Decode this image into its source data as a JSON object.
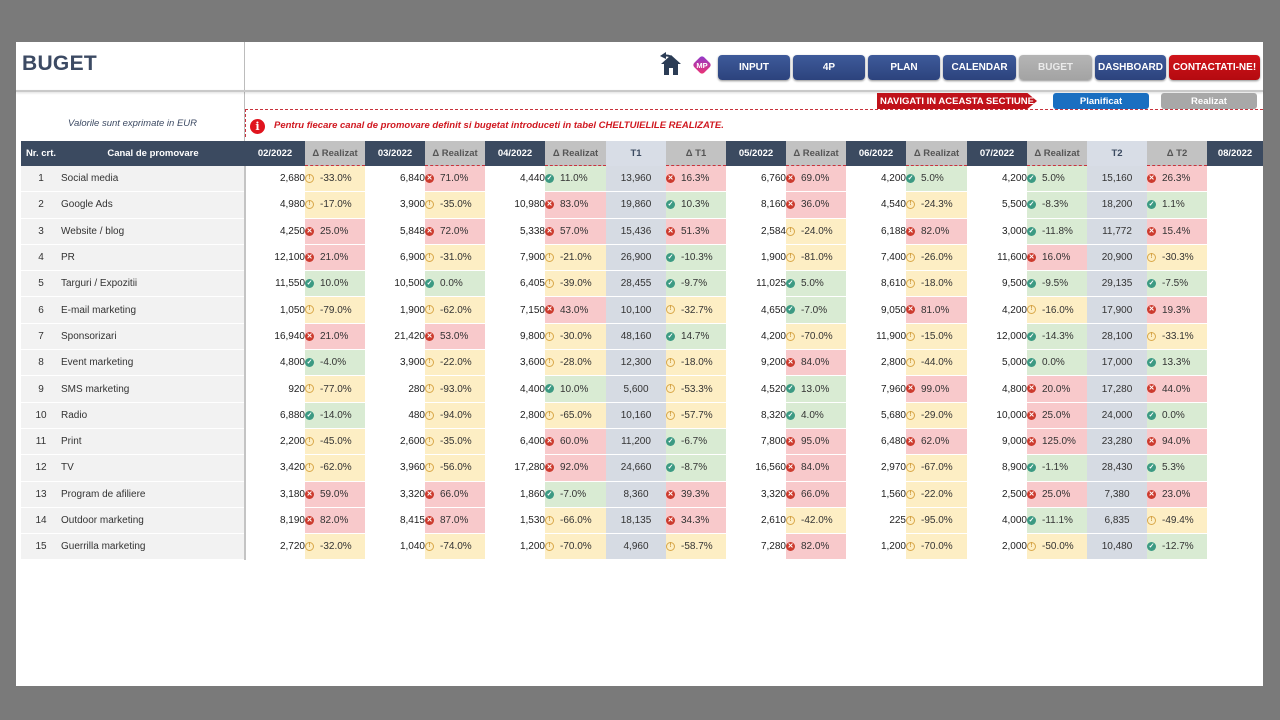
{
  "header": {
    "title": "BUGET",
    "icons": {
      "home": "home-back-icon",
      "logo": "mp-logo-icon"
    },
    "nav": [
      {
        "label": "INPUT",
        "active": false
      },
      {
        "label": "4P",
        "active": false
      },
      {
        "label": "PLAN",
        "active": false
      },
      {
        "label": "CALENDAR",
        "active": false
      },
      {
        "label": "BUGET",
        "active": true
      },
      {
        "label": "DASHBOARD",
        "active": false
      },
      {
        "label": "CONTACTATI-NE!",
        "active": false
      }
    ],
    "section_label": "NAVIGATI IN ACEASTA SECTIUNE",
    "section_buttons": {
      "planned": "Planificat",
      "actual": "Realizat"
    }
  },
  "notes": {
    "units": "Valorile sunt exprimate in EUR",
    "info": "Pentru fiecare canal de promovare definit si bugetat introduceti in tabel CHELTUIELILE REALIZATE.",
    "info_icon": "i"
  },
  "colors": {
    "header_dark": "#3b4a60",
    "nav_blue": "#2c437d",
    "contact_red": "#c0121a",
    "status_ok": "#d9ebd3",
    "status_warn": "#fdeec4",
    "status_bad": "#f8c9cb"
  },
  "table": {
    "columns": {
      "nr": "Nr. crt.",
      "canal": "Canal de promovare",
      "m1": "02/2022",
      "d1": "Δ Realizat",
      "m2": "03/2022",
      "d2": "Δ Realizat",
      "m3": "04/2022",
      "d3": "Δ Realizat",
      "q1": "T1",
      "dq1": "Δ  T1",
      "m4": "05/2022",
      "d4": "Δ Realizat",
      "m5": "06/2022",
      "d5": "Δ Realizat",
      "m6": "07/2022",
      "d6": "Δ Realizat",
      "q2": "T2",
      "dq2": "Δ  T2",
      "m7": "08/2022"
    },
    "rows": [
      {
        "nr": "1",
        "canal": "Social media",
        "m1": "2,680",
        "d1": "-33.0%",
        "m2": "6,840",
        "d2": "71.0%",
        "m3": "4,440",
        "d3": "11.0%",
        "q1": "13,960",
        "dq1": "16.3%",
        "m4": "6,760",
        "d4": "69.0%",
        "m5": "4,200",
        "d5": "5.0%",
        "m6": "4,200",
        "d6": "5.0%",
        "q2": "15,160",
        "dq2": "26.3%"
      },
      {
        "nr": "2",
        "canal": "Google Ads",
        "m1": "4,980",
        "d1": "-17.0%",
        "m2": "3,900",
        "d2": "-35.0%",
        "m3": "10,980",
        "d3": "83.0%",
        "q1": "19,860",
        "dq1": "10.3%",
        "m4": "8,160",
        "d4": "36.0%",
        "m5": "4,540",
        "d5": "-24.3%",
        "m6": "5,500",
        "d6": "-8.3%",
        "q2": "18,200",
        "dq2": "1.1%"
      },
      {
        "nr": "3",
        "canal": "Website / blog",
        "m1": "4,250",
        "d1": "25.0%",
        "m2": "5,848",
        "d2": "72.0%",
        "m3": "5,338",
        "d3": "57.0%",
        "q1": "15,436",
        "dq1": "51.3%",
        "m4": "2,584",
        "d4": "-24.0%",
        "m5": "6,188",
        "d5": "82.0%",
        "m6": "3,000",
        "d6": "-11.8%",
        "q2": "11,772",
        "dq2": "15.4%"
      },
      {
        "nr": "4",
        "canal": "PR",
        "m1": "12,100",
        "d1": "21.0%",
        "m2": "6,900",
        "d2": "-31.0%",
        "m3": "7,900",
        "d3": "-21.0%",
        "q1": "26,900",
        "dq1": "-10.3%",
        "m4": "1,900",
        "d4": "-81.0%",
        "m5": "7,400",
        "d5": "-26.0%",
        "m6": "11,600",
        "d6": "16.0%",
        "q2": "20,900",
        "dq2": "-30.3%"
      },
      {
        "nr": "5",
        "canal": "Targuri / Expozitii",
        "m1": "11,550",
        "d1": "10.0%",
        "m2": "10,500",
        "d2": "0.0%",
        "m3": "6,405",
        "d3": "-39.0%",
        "q1": "28,455",
        "dq1": "-9.7%",
        "m4": "11,025",
        "d4": "5.0%",
        "m5": "8,610",
        "d5": "-18.0%",
        "m6": "9,500",
        "d6": "-9.5%",
        "q2": "29,135",
        "dq2": "-7.5%"
      },
      {
        "nr": "6",
        "canal": "E-mail marketing",
        "m1": "1,050",
        "d1": "-79.0%",
        "m2": "1,900",
        "d2": "-62.0%",
        "m3": "7,150",
        "d3": "43.0%",
        "q1": "10,100",
        "dq1": "-32.7%",
        "m4": "4,650",
        "d4": "-7.0%",
        "m5": "9,050",
        "d5": "81.0%",
        "m6": "4,200",
        "d6": "-16.0%",
        "q2": "17,900",
        "dq2": "19.3%"
      },
      {
        "nr": "7",
        "canal": "Sponsorizari",
        "m1": "16,940",
        "d1": "21.0%",
        "m2": "21,420",
        "d2": "53.0%",
        "m3": "9,800",
        "d3": "-30.0%",
        "q1": "48,160",
        "dq1": "14.7%",
        "m4": "4,200",
        "d4": "-70.0%",
        "m5": "11,900",
        "d5": "-15.0%",
        "m6": "12,000",
        "d6": "-14.3%",
        "q2": "28,100",
        "dq2": "-33.1%"
      },
      {
        "nr": "8",
        "canal": "Event marketing",
        "m1": "4,800",
        "d1": "-4.0%",
        "m2": "3,900",
        "d2": "-22.0%",
        "m3": "3,600",
        "d3": "-28.0%",
        "q1": "12,300",
        "dq1": "-18.0%",
        "m4": "9,200",
        "d4": "84.0%",
        "m5": "2,800",
        "d5": "-44.0%",
        "m6": "5,000",
        "d6": "0.0%",
        "q2": "17,000",
        "dq2": "13.3%"
      },
      {
        "nr": "9",
        "canal": "SMS marketing",
        "m1": "920",
        "d1": "-77.0%",
        "m2": "280",
        "d2": "-93.0%",
        "m3": "4,400",
        "d3": "10.0%",
        "q1": "5,600",
        "dq1": "-53.3%",
        "m4": "4,520",
        "d4": "13.0%",
        "m5": "7,960",
        "d5": "99.0%",
        "m6": "4,800",
        "d6": "20.0%",
        "q2": "17,280",
        "dq2": "44.0%"
      },
      {
        "nr": "10",
        "canal": "Radio",
        "m1": "6,880",
        "d1": "-14.0%",
        "m2": "480",
        "d2": "-94.0%",
        "m3": "2,800",
        "d3": "-65.0%",
        "q1": "10,160",
        "dq1": "-57.7%",
        "m4": "8,320",
        "d4": "4.0%",
        "m5": "5,680",
        "d5": "-29.0%",
        "m6": "10,000",
        "d6": "25.0%",
        "q2": "24,000",
        "dq2": "0.0%"
      },
      {
        "nr": "11",
        "canal": "Print",
        "m1": "2,200",
        "d1": "-45.0%",
        "m2": "2,600",
        "d2": "-35.0%",
        "m3": "6,400",
        "d3": "60.0%",
        "q1": "11,200",
        "dq1": "-6.7%",
        "m4": "7,800",
        "d4": "95.0%",
        "m5": "6,480",
        "d5": "62.0%",
        "m6": "9,000",
        "d6": "125.0%",
        "q2": "23,280",
        "dq2": "94.0%"
      },
      {
        "nr": "12",
        "canal": "TV",
        "m1": "3,420",
        "d1": "-62.0%",
        "m2": "3,960",
        "d2": "-56.0%",
        "m3": "17,280",
        "d3": "92.0%",
        "q1": "24,660",
        "dq1": "-8.7%",
        "m4": "16,560",
        "d4": "84.0%",
        "m5": "2,970",
        "d5": "-67.0%",
        "m6": "8,900",
        "d6": "-1.1%",
        "q2": "28,430",
        "dq2": "5.3%"
      },
      {
        "nr": "13",
        "canal": "Program de afiliere",
        "m1": "3,180",
        "d1": "59.0%",
        "m2": "3,320",
        "d2": "66.0%",
        "m3": "1,860",
        "d3": "-7.0%",
        "q1": "8,360",
        "dq1": "39.3%",
        "m4": "3,320",
        "d4": "66.0%",
        "m5": "1,560",
        "d5": "-22.0%",
        "m6": "2,500",
        "d6": "25.0%",
        "q2": "7,380",
        "dq2": "23.0%"
      },
      {
        "nr": "14",
        "canal": "Outdoor marketing",
        "m1": "8,190",
        "d1": "82.0%",
        "m2": "8,415",
        "d2": "87.0%",
        "m3": "1,530",
        "d3": "-66.0%",
        "q1": "18,135",
        "dq1": "34.3%",
        "m4": "2,610",
        "d4": "-42.0%",
        "m5": "225",
        "d5": "-95.0%",
        "m6": "4,000",
        "d6": "-11.1%",
        "q2": "6,835",
        "dq2": "-49.4%"
      },
      {
        "nr": "15",
        "canal": "Guerrilla marketing",
        "m1": "2,720",
        "d1": "-32.0%",
        "m2": "1,040",
        "d2": "-74.0%",
        "m3": "1,200",
        "d3": "-70.0%",
        "q1": "4,960",
        "dq1": "-58.7%",
        "m4": "7,280",
        "d4": "82.0%",
        "m5": "1,200",
        "d5": "-70.0%",
        "m6": "2,000",
        "d6": "-50.0%",
        "q2": "10,480",
        "dq2": "-12.7%"
      }
    ],
    "status": [
      [
        "warn",
        "bad",
        "ok",
        "bad",
        "bad",
        "ok",
        "ok",
        "bad"
      ],
      [
        "warn",
        "warn",
        "bad",
        "ok",
        "bad",
        "warn",
        "ok",
        "ok"
      ],
      [
        "bad",
        "bad",
        "bad",
        "bad",
        "warn",
        "bad",
        "ok",
        "bad"
      ],
      [
        "bad",
        "warn",
        "warn",
        "ok",
        "warn",
        "warn",
        "bad",
        "warn"
      ],
      [
        "ok",
        "ok",
        "warn",
        "ok",
        "ok",
        "warn",
        "ok",
        "ok"
      ],
      [
        "warn",
        "warn",
        "bad",
        "warn",
        "ok",
        "bad",
        "warn",
        "bad"
      ],
      [
        "bad",
        "bad",
        "warn",
        "ok",
        "warn",
        "warn",
        "ok",
        "warn"
      ],
      [
        "ok",
        "warn",
        "warn",
        "warn",
        "bad",
        "warn",
        "ok",
        "ok"
      ],
      [
        "warn",
        "warn",
        "ok",
        "warn",
        "ok",
        "bad",
        "bad",
        "bad"
      ],
      [
        "ok",
        "warn",
        "warn",
        "warn",
        "ok",
        "warn",
        "bad",
        "ok"
      ],
      [
        "warn",
        "warn",
        "bad",
        "ok",
        "bad",
        "bad",
        "bad",
        "bad"
      ],
      [
        "warn",
        "warn",
        "bad",
        "ok",
        "bad",
        "warn",
        "ok",
        "ok"
      ],
      [
        "bad",
        "bad",
        "ok",
        "bad",
        "bad",
        "warn",
        "bad",
        "bad"
      ],
      [
        "bad",
        "bad",
        "warn",
        "bad",
        "warn",
        "warn",
        "ok",
        "warn"
      ],
      [
        "warn",
        "warn",
        "warn",
        "warn",
        "bad",
        "warn",
        "warn",
        "ok"
      ]
    ]
  }
}
